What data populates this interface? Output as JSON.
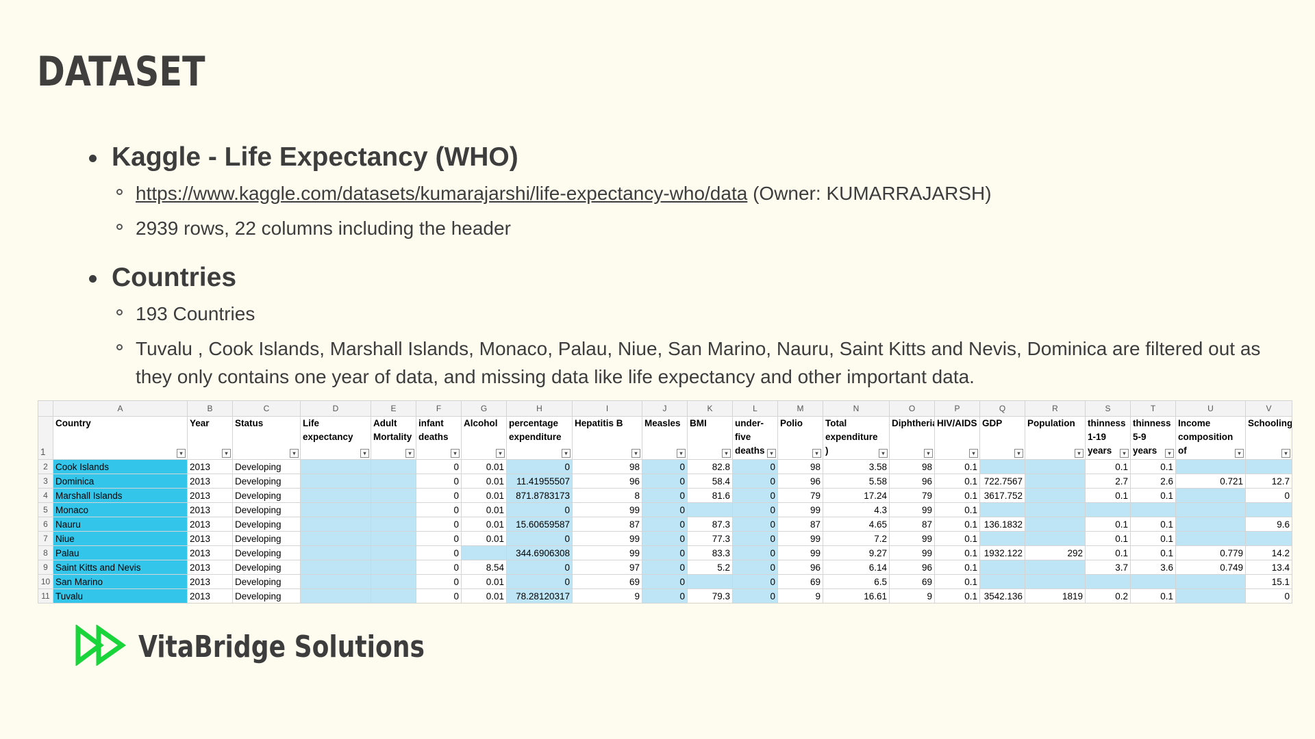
{
  "title": "DATASET",
  "bullets": {
    "kaggle_title": "Kaggle - Life Expectancy (WHO)",
    "kaggle_link": "https://www.kaggle.com/datasets/kumarajarshi/life-expectancy-who/data",
    "kaggle_owner": " (Owner: KUMARRAJARSH)",
    "kaggle_rows": "2939 rows, 22 columns including the header",
    "countries_title": "Countries",
    "countries_count": "193 Countries",
    "countries_filtered": "Tuvalu , Cook Islands, Marshall Islands, Monaco, Palau, Niue, San Marino, Nauru, Saint Kitts and Nevis, Dominica are filtered out as they only contains one year of data, and missing data like life expectancy and other important data."
  },
  "sheet": {
    "col_letters": [
      "A",
      "B",
      "C",
      "D",
      "E",
      "F",
      "G",
      "H",
      "I",
      "J",
      "K",
      "L",
      "M",
      "N",
      "O",
      "P",
      "Q",
      "R",
      "S",
      "T",
      "U",
      "V"
    ],
    "headers": [
      "Country",
      "Year",
      "Status",
      "Life expectancy",
      "Adult Mortality",
      "infant deaths",
      "Alcohol",
      "percentage expenditure",
      "Hepatitis B",
      "Measles",
      "BMI",
      "under-five deaths",
      "Polio",
      "Total expenditure )",
      "Diphtheria",
      "HIV/AIDS",
      "GDP",
      "Population",
      "thinness 1-19 years",
      "thinness 5-9 years",
      "Income composition of",
      "Schooling"
    ],
    "rows": [
      [
        "Cook Islands",
        "2013",
        "Developing",
        "",
        "",
        "0",
        "0.01",
        "0",
        "98",
        "0",
        "82.8",
        "0",
        "98",
        "3.58",
        "98",
        "0.1",
        "",
        "",
        "0.1",
        "0.1",
        "",
        ""
      ],
      [
        "Dominica",
        "2013",
        "Developing",
        "",
        "",
        "0",
        "0.01",
        "11.41955507",
        "96",
        "0",
        "58.4",
        "0",
        "96",
        "5.58",
        "96",
        "0.1",
        "722.7567",
        "",
        "2.7",
        "2.6",
        "0.721",
        "12.7"
      ],
      [
        "Marshall Islands",
        "2013",
        "Developing",
        "",
        "",
        "0",
        "0.01",
        "871.8783173",
        "8",
        "0",
        "81.6",
        "0",
        "79",
        "17.24",
        "79",
        "0.1",
        "3617.752",
        "",
        "0.1",
        "0.1",
        "",
        "0"
      ],
      [
        "Monaco",
        "2013",
        "Developing",
        "",
        "",
        "0",
        "0.01",
        "0",
        "99",
        "0",
        "",
        "0",
        "99",
        "4.3",
        "99",
        "0.1",
        "",
        "",
        "",
        "",
        "",
        ""
      ],
      [
        "Nauru",
        "2013",
        "Developing",
        "",
        "",
        "0",
        "0.01",
        "15.60659587",
        "87",
        "0",
        "87.3",
        "0",
        "87",
        "4.65",
        "87",
        "0.1",
        "136.1832",
        "",
        "0.1",
        "0.1",
        "",
        "9.6"
      ],
      [
        "Niue",
        "2013",
        "Developing",
        "",
        "",
        "0",
        "0.01",
        "0",
        "99",
        "0",
        "77.3",
        "0",
        "99",
        "7.2",
        "99",
        "0.1",
        "",
        "",
        "0.1",
        "0.1",
        "",
        ""
      ],
      [
        "Palau",
        "2013",
        "Developing",
        "",
        "",
        "0",
        "",
        "344.6906308",
        "99",
        "0",
        "83.3",
        "0",
        "99",
        "9.27",
        "99",
        "0.1",
        "1932.122",
        "292",
        "0.1",
        "0.1",
        "0.779",
        "14.2"
      ],
      [
        "Saint Kitts and Nevis",
        "2013",
        "Developing",
        "",
        "",
        "0",
        "8.54",
        "0",
        "97",
        "0",
        "5.2",
        "0",
        "96",
        "6.14",
        "96",
        "0.1",
        "",
        "",
        "3.7",
        "3.6",
        "0.749",
        "13.4"
      ],
      [
        "San Marino",
        "2013",
        "Developing",
        "",
        "",
        "0",
        "0.01",
        "0",
        "69",
        "0",
        "",
        "0",
        "69",
        "6.5",
        "69",
        "0.1",
        "",
        "",
        "",
        "",
        "",
        "15.1"
      ],
      [
        "Tuvalu",
        "2013",
        "Developing",
        "",
        "",
        "0",
        "0.01",
        "78.28120317",
        "9",
        "0",
        "79.3",
        "0",
        "9",
        "16.61",
        "9",
        "0.1",
        "3542.136",
        "1819",
        "0.2",
        "0.1",
        "",
        "0"
      ]
    ]
  },
  "brand": {
    "name": "VitaBridge Solutions",
    "logo_icon": "double-play-arrow-icon",
    "logo_color": "#19d43a"
  }
}
